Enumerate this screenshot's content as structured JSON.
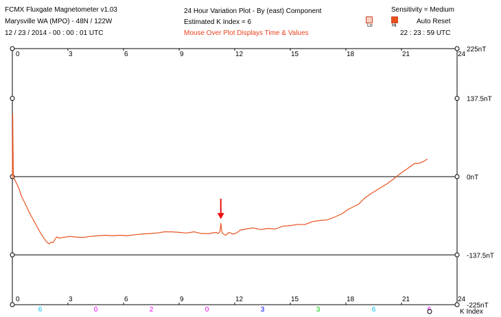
{
  "header": {
    "app_title": "FCMX Fluxgate Magnetometer v1.03",
    "station": "Marysville WA (MPO) - 48N / 122W",
    "start_time": "12 / 23 / 2014 - 00 : 00 : 01 UTC",
    "plot_title": "24 Hour Variation Plot - By (east) Component",
    "k_index": "Estimated K Index = 6",
    "mouse_hint": "Mouse Over Plot Displays Time & Values",
    "sensitivity": "Sensitivity = Medium",
    "lo_label": "Lo",
    "hi_label": "Hi",
    "auto_reset": "Auto Reset",
    "current_time": "22 : 23 : 59 UTC"
  },
  "colors": {
    "trace": "#e8501c",
    "arrow": "#e81010",
    "frame": "#000000",
    "k_index_colors": [
      "#00bbee",
      "#ee00ee",
      "#0000ff",
      "#00cc00",
      "#ff0000"
    ]
  },
  "chart_data": {
    "type": "line",
    "title": "24 Hour Variation Plot - By (east) Component",
    "xlabel": "",
    "ylabel": "",
    "xlim": [
      0,
      24
    ],
    "ylim": [
      -225,
      225
    ],
    "x_ticks": [
      0,
      3,
      6,
      9,
      12,
      15,
      18,
      21,
      24
    ],
    "y_tick_labels": [
      "225nT",
      "137.5nT",
      "0nT",
      "-137.5nT",
      "-225nT"
    ],
    "y_tick_values": [
      225,
      137.5,
      0,
      -137.5,
      -225
    ],
    "reference_lines": [
      0,
      -137.5
    ],
    "grid": false,
    "series": [
      {
        "x": [
          0.0,
          0.02,
          0.05,
          0.1,
          0.2,
          0.35,
          0.5,
          0.7,
          0.9,
          1.1,
          1.3,
          1.5,
          1.7,
          1.85,
          2.0,
          2.1,
          2.2,
          2.3,
          2.4,
          2.55,
          2.7,
          2.9,
          3.1,
          3.4,
          3.8,
          4.2,
          4.6,
          5.0,
          5.4,
          5.8,
          6.2,
          6.6,
          7.0,
          7.4,
          7.8,
          8.2,
          8.6,
          9.0,
          9.4,
          9.8,
          10.2,
          10.6,
          11.0,
          11.1,
          11.2,
          11.25,
          11.3,
          11.35,
          11.5,
          11.7,
          11.9,
          12.1,
          12.3,
          12.6,
          13.0,
          13.4,
          13.8,
          14.2,
          14.6,
          15.0,
          15.4,
          15.8,
          16.2,
          16.6,
          17.0,
          17.4,
          17.8,
          18.1,
          18.4,
          18.7,
          19.0,
          19.3,
          19.6,
          19.9,
          20.2,
          20.5,
          20.8,
          21.1,
          21.4,
          21.7,
          22.0,
          22.2,
          22.4
        ],
        "y": [
          -2,
          110,
          5,
          -4,
          -10,
          -20,
          -35,
          -48,
          -62,
          -74,
          -86,
          -98,
          -108,
          -115,
          -118,
          -115,
          -116,
          -110,
          -106,
          -108,
          -107,
          -106,
          -105,
          -106,
          -107,
          -105,
          -104,
          -103,
          -104,
          -103,
          -104,
          -102,
          -101,
          -100,
          -99,
          -97,
          -97,
          -98,
          -99,
          -97,
          -100,
          -100,
          -98,
          -100,
          -97,
          -82,
          -96,
          -100,
          -103,
          -98,
          -101,
          -99,
          -94,
          -92,
          -90,
          -93,
          -91,
          -92,
          -87,
          -86,
          -84,
          -84,
          -79,
          -77,
          -76,
          -71,
          -65,
          -58,
          -53,
          -48,
          -38,
          -31,
          -25,
          -19,
          -13,
          -6,
          2,
          9,
          16,
          23,
          24,
          27,
          31
        ]
      }
    ],
    "annotations": [
      {
        "type": "arrow",
        "x": 11.25,
        "y": -82
      }
    ],
    "k_index_row": {
      "label": "K Index",
      "values": [
        "6",
        "0",
        "2",
        "0",
        "3",
        "3",
        "6",
        "6"
      ],
      "color_index": [
        0,
        1,
        1,
        1,
        2,
        3,
        0,
        1
      ]
    }
  }
}
